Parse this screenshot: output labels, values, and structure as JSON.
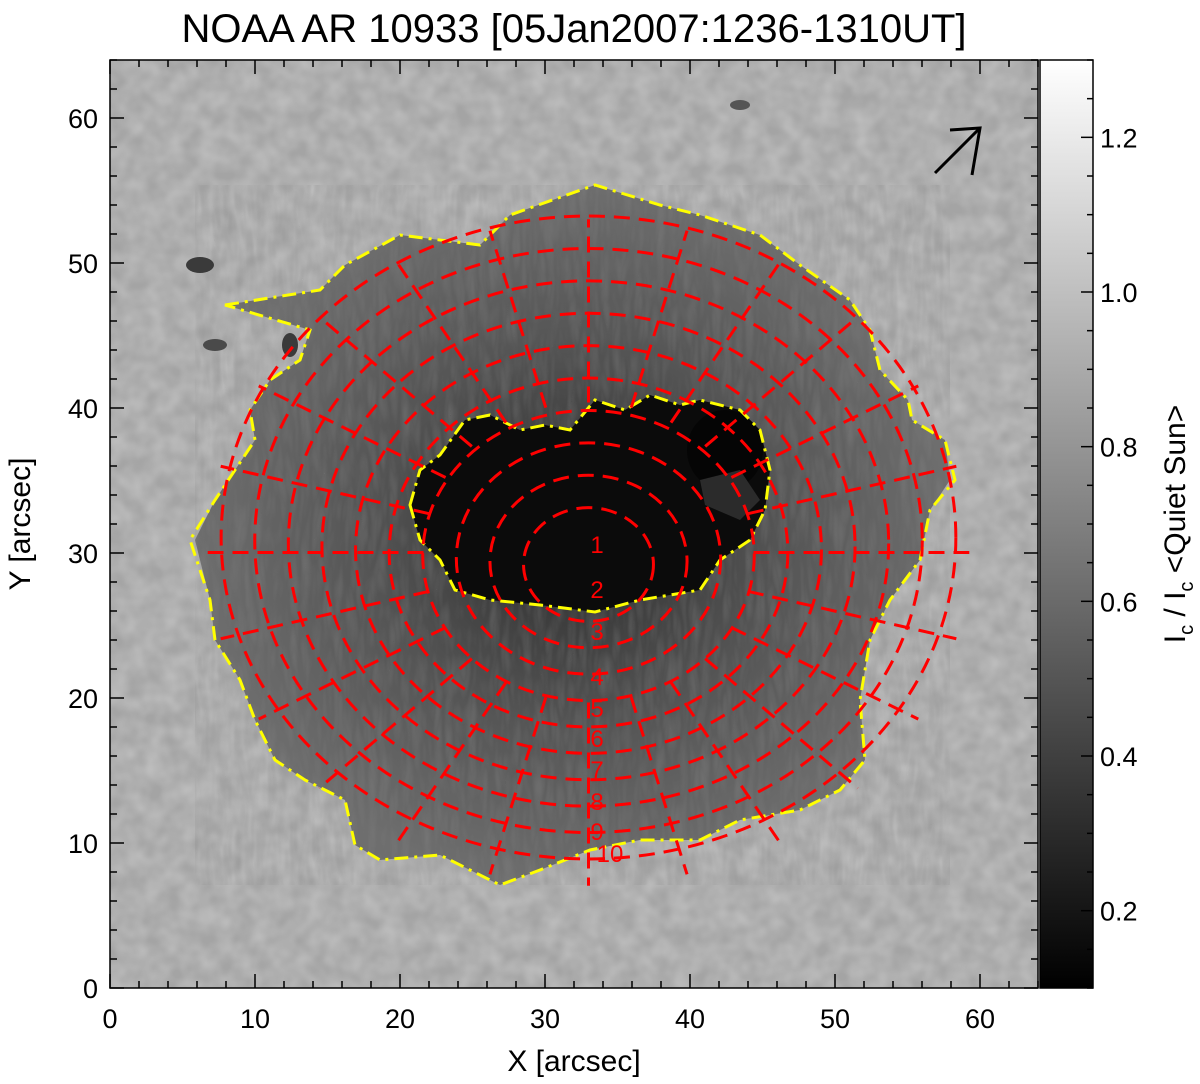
{
  "figure": {
    "title": "NOAA AR 10933 [05Jan2007:1236-1310UT]",
    "xlabel": "X [arcsec]",
    "ylabel": "Y [arcsec]",
    "xlim": [
      0,
      64
    ],
    "ylim": [
      0,
      64
    ],
    "xticks": [
      "0",
      "10",
      "20",
      "30",
      "40",
      "50",
      "60"
    ],
    "yticks": [
      "0",
      "10",
      "20",
      "30",
      "40",
      "50",
      "60"
    ],
    "xtick_values": [
      0,
      10,
      20,
      30,
      40,
      50,
      60
    ],
    "ytick_values": [
      0,
      10,
      20,
      30,
      40,
      50,
      60
    ],
    "image_content": "grayscale continuum intensity image of a sunspot",
    "colors": {
      "radial_contours": "#ff0000",
      "boundary_contours": "#ffff00",
      "arrow": "#000000"
    }
  },
  "colorbar": {
    "label_main": "I",
    "label_sub1": "c",
    "label_mid": " / I",
    "label_sub2": "c",
    "label_end": " <Quiet Sun>",
    "range": [
      0.1,
      1.3
    ],
    "ticks": [
      "0.2",
      "0.4",
      "0.6",
      "0.8",
      "1.0",
      "1.2"
    ],
    "tick_values": [
      0.2,
      0.4,
      0.6,
      0.8,
      1.0,
      1.2
    ]
  },
  "contour_labels": [
    "1",
    "2",
    "3",
    "4",
    "5",
    "6",
    "7",
    "8",
    "9",
    "10"
  ]
}
